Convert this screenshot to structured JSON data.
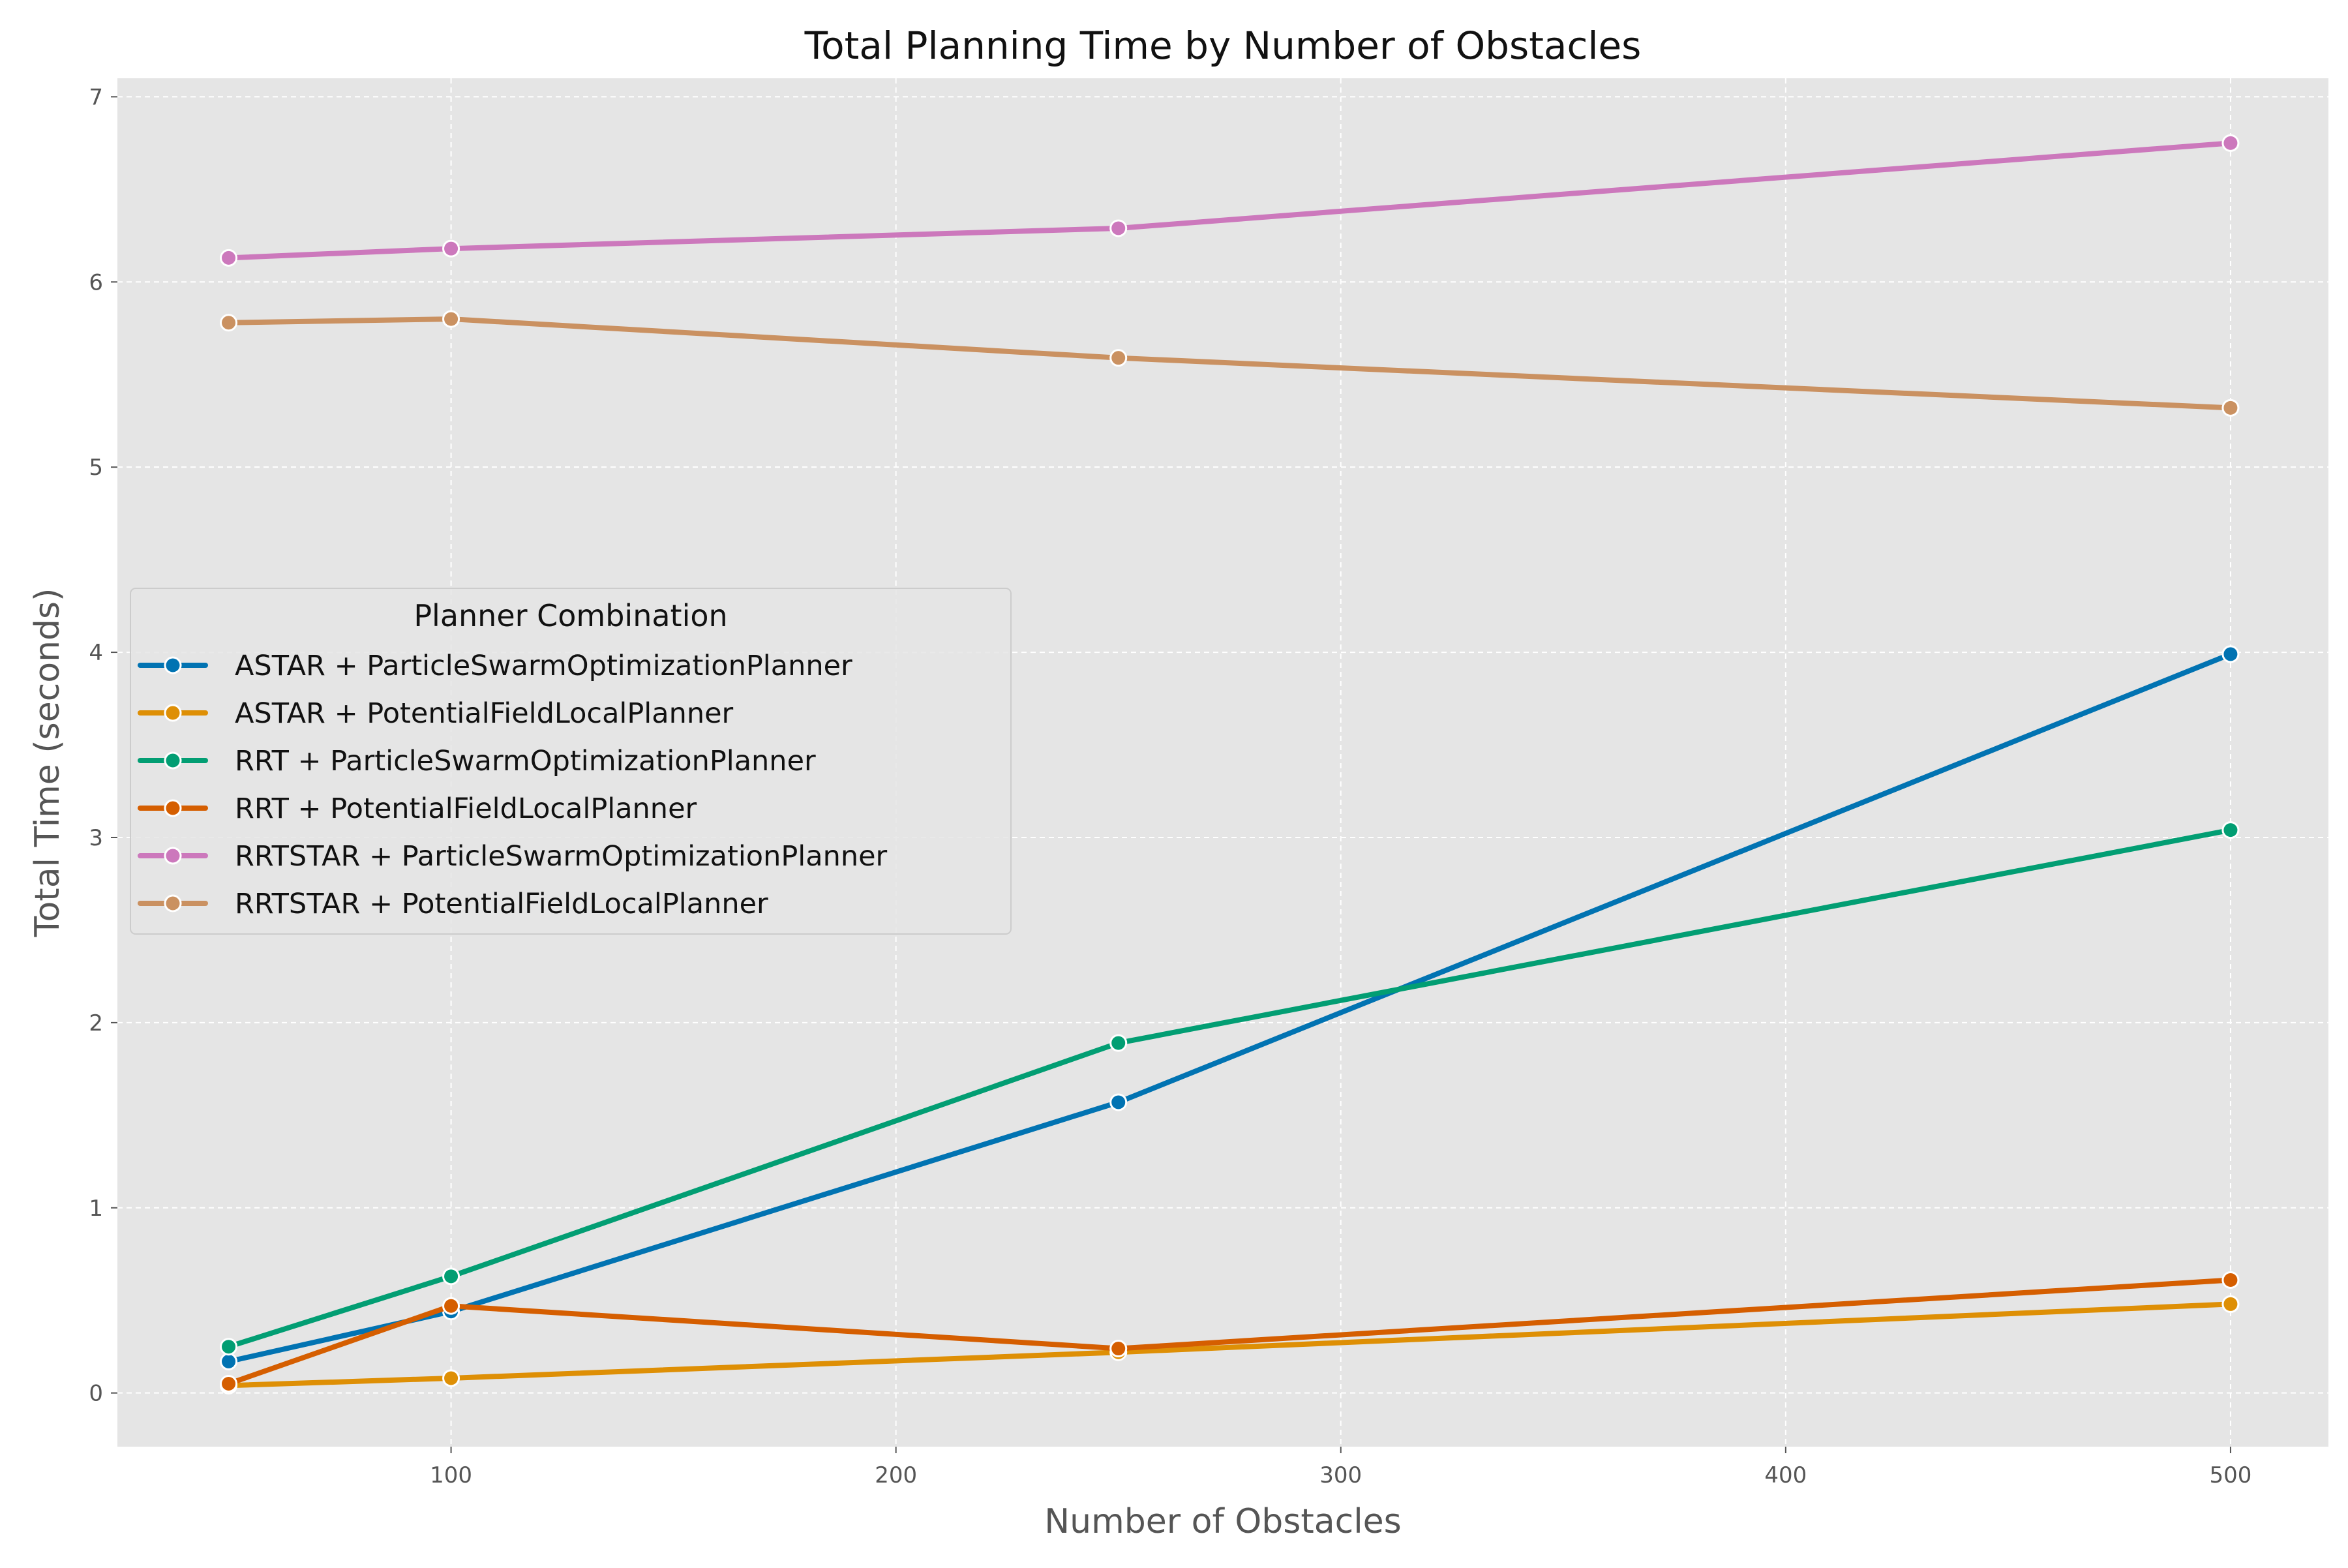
{
  "chart_data": {
    "type": "line",
    "title": "Total Planning Time by Number of Obstacles",
    "xlabel": "Number of Obstacles",
    "ylabel": "Total Time (seconds)",
    "xlim": [
      25,
      522
    ],
    "ylim": [
      -0.29,
      7.1
    ],
    "xticks": [
      100,
      200,
      300,
      400,
      500
    ],
    "yticks": [
      0,
      1,
      2,
      3,
      4,
      5,
      6,
      7
    ],
    "grid": true,
    "legend": {
      "title": "Planner Combination",
      "placement": "center-left"
    },
    "x": [
      50,
      100,
      250,
      500
    ],
    "series": [
      {
        "name": "ASTAR + ParticleSwarmOptimizationPlanner",
        "color": "#0173b2",
        "values": [
          0.17,
          0.44,
          1.57,
          3.99
        ]
      },
      {
        "name": "ASTAR + PotentialFieldLocalPlanner",
        "color": "#de8f05",
        "values": [
          0.04,
          0.08,
          0.22,
          0.48
        ]
      },
      {
        "name": "RRT + ParticleSwarmOptimizationPlanner",
        "color": "#029e73",
        "values": [
          0.25,
          0.63,
          1.89,
          3.04
        ]
      },
      {
        "name": "RRT + PotentialFieldLocalPlanner",
        "color": "#d55e00",
        "values": [
          0.05,
          0.47,
          0.24,
          0.61
        ]
      },
      {
        "name": "RRTSTAR + ParticleSwarmOptimizationPlanner",
        "color": "#cc78bc",
        "values": [
          6.13,
          6.18,
          6.29,
          6.75
        ]
      },
      {
        "name": "RRTSTAR + PotentialFieldLocalPlanner",
        "color": "#ca9161",
        "values": [
          5.78,
          5.8,
          5.59,
          5.32
        ]
      }
    ]
  }
}
